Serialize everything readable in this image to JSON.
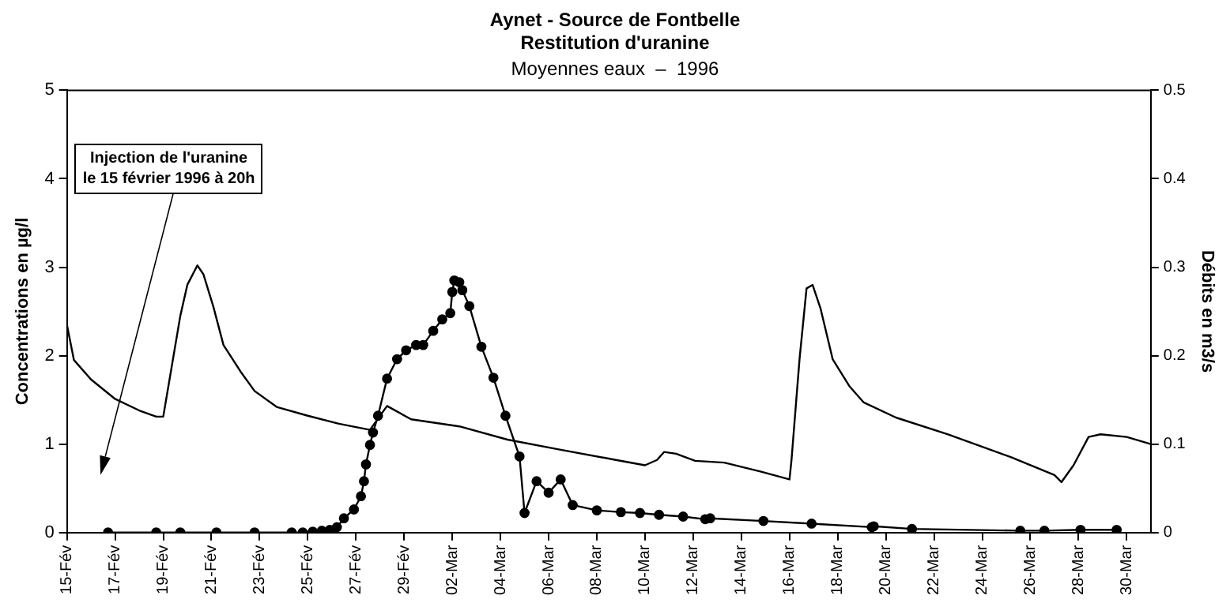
{
  "chart_data": {
    "type": "line",
    "title": "Aynet - Source de Fontbelle\nRestitution d'uranine",
    "subtitle": "Moyennes eaux  –  1996",
    "ylabel": "Concentrations en µg/l",
    "y2label": "Débits en m3/s",
    "annotations": [
      "Injection de l'uranine\nle 15 février 1996 à 20h"
    ],
    "xlim": [
      "1996-02-15",
      "1996-03-31"
    ],
    "xticks": [
      {
        "value": "1996-02-15",
        "label": "15-Fév"
      },
      {
        "value": "1996-02-17",
        "label": "17-Fév"
      },
      {
        "value": "1996-02-19",
        "label": "19-Fév"
      },
      {
        "value": "1996-02-21",
        "label": "21-Fév"
      },
      {
        "value": "1996-02-23",
        "label": "23-Fév"
      },
      {
        "value": "1996-02-25",
        "label": "25-Fév"
      },
      {
        "value": "1996-02-27",
        "label": "27-Fév"
      },
      {
        "value": "1996-02-29",
        "label": "29-Fév"
      },
      {
        "value": "1996-03-02",
        "label": "02-Mar"
      },
      {
        "value": "1996-03-04",
        "label": "04-Mar"
      },
      {
        "value": "1996-03-06",
        "label": "06-Mar"
      },
      {
        "value": "1996-03-08",
        "label": "08-Mar"
      },
      {
        "value": "1996-03-10",
        "label": "10-Mar"
      },
      {
        "value": "1996-03-12",
        "label": "12-Mar"
      },
      {
        "value": "1996-03-14",
        "label": "14-Mar"
      },
      {
        "value": "1996-03-16",
        "label": "16-Mar"
      },
      {
        "value": "1996-03-18",
        "label": "18-Mar"
      },
      {
        "value": "1996-03-20",
        "label": "20-Mar"
      },
      {
        "value": "1996-03-22",
        "label": "22-Mar"
      },
      {
        "value": "1996-03-24",
        "label": "24-Mar"
      },
      {
        "value": "1996-03-26",
        "label": "26-Mar"
      },
      {
        "value": "1996-03-28",
        "label": "28-Mar"
      },
      {
        "value": "1996-03-30",
        "label": "30-Mar"
      }
    ],
    "ylim": [
      0,
      5
    ],
    "yticks": [
      0,
      1,
      2,
      3,
      4,
      5
    ],
    "y2lim": [
      0,
      0.5
    ],
    "y2ticks": [
      0,
      0.1,
      0.2,
      0.3,
      0.4,
      0.5
    ],
    "grid": false,
    "legend": false,
    "series": [
      {
        "axis": "y2",
        "color": "#000000",
        "marker": "none",
        "x": [
          "1996-02-15T00:00",
          "1996-02-15T07:00",
          "1996-02-16T00:00",
          "1996-02-17T00:00",
          "1996-02-18T00:00",
          "1996-02-18T17:00",
          "1996-02-19T00:00",
          "1996-02-19T17:00",
          "1996-02-20T00:00",
          "1996-02-20T10:00",
          "1996-02-20T16:00",
          "1996-02-21T02:00",
          "1996-02-21T12:00",
          "1996-02-22T05:00",
          "1996-02-22T19:00",
          "1996-02-23T17:00",
          "1996-02-25T00:00",
          "1996-02-26T07:00",
          "1996-02-27T14:00",
          "1996-02-28T07:00",
          "1996-02-29T07:00",
          "1996-03-02T07:00",
          "1996-03-04T07:00",
          "1996-03-06T10:00",
          "1996-03-08T19:00",
          "1996-03-10T00:00",
          "1996-03-10T12:00",
          "1996-03-10T19:00",
          "1996-03-11T07:00",
          "1996-03-12T02:00",
          "1996-03-13T07:00",
          "1996-03-14T19:00",
          "1996-03-16T00:00",
          "1996-03-16T02:00",
          "1996-03-16T10:00",
          "1996-03-16T17:00",
          "1996-03-16T23:00",
          "1996-03-17T07:00",
          "1996-03-17T19:00",
          "1996-03-18T12:00",
          "1996-03-19T02:00",
          "1996-03-20T10:00",
          "1996-03-22T14:00",
          "1996-03-25T05:00",
          "1996-03-27T00:00",
          "1996-03-27T07:00",
          "1996-03-27T19:00",
          "1996-03-28T10:00",
          "1996-03-28T22:00",
          "1996-03-30T00:00",
          "1996-03-31T00:00"
        ],
        "values": [
          0.235,
          0.195,
          0.173,
          0.151,
          0.138,
          0.131,
          0.131,
          0.245,
          0.28,
          0.302,
          0.292,
          0.255,
          0.212,
          0.182,
          0.16,
          0.142,
          0.132,
          0.123,
          0.116,
          0.143,
          0.128,
          0.12,
          0.105,
          0.094,
          0.082,
          0.076,
          0.082,
          0.091,
          0.089,
          0.081,
          0.079,
          0.069,
          0.06,
          0.082,
          0.196,
          0.276,
          0.28,
          0.253,
          0.196,
          0.165,
          0.147,
          0.13,
          0.111,
          0.085,
          0.065,
          0.057,
          0.076,
          0.108,
          0.111,
          0.108,
          0.1
        ]
      },
      {
        "color": "#000000",
        "marker": "circle",
        "x": [
          "1996-02-16T17:00",
          "1996-02-18T17:00",
          "1996-02-19T17:00",
          "1996-02-21T05:00",
          "1996-02-22T19:00",
          "1996-02-24T08:00",
          "1996-02-24T19:00",
          "1996-02-25T05:00",
          "1996-02-25T14:00",
          "1996-02-25T22:00",
          "1996-02-26T05:00",
          "1996-02-26T12:00",
          "1996-02-26T22:00",
          "1996-02-27T05:00",
          "1996-02-27T08:00",
          "1996-02-27T10:00",
          "1996-02-27T14:00",
          "1996-02-27T17:00",
          "1996-02-27T22:00",
          "1996-02-28T07:00",
          "1996-02-28T17:00",
          "1996-02-29T02:00",
          "1996-02-29T12:00",
          "1996-02-29T19:00",
          "1996-03-01T05:00",
          "1996-03-01T14:00",
          "1996-03-01T22:00",
          "1996-03-02T00:00",
          "1996-03-02T02:00",
          "1996-03-02T07:00",
          "1996-03-02T10:00",
          "1996-03-02T17:00",
          "1996-03-03T05:00",
          "1996-03-03T17:00",
          "1996-03-04T05:00",
          "1996-03-04T19:00",
          "1996-03-05T00:00",
          "1996-03-05T12:00",
          "1996-03-06T00:00",
          "1996-03-06T12:00",
          "1996-03-07T00:00",
          "1996-03-08T00:00",
          "1996-03-09T00:00",
          "1996-03-09T19:00",
          "1996-03-10T14:00",
          "1996-03-11T14:00",
          "1996-03-12T12:00",
          "1996-03-12T17:00",
          "1996-03-14T22:00",
          "1996-03-16T22:00",
          "1996-03-19T10:00",
          "1996-03-19T12:00",
          "1996-03-21T02:00",
          "1996-03-25T14:00",
          "1996-03-26T14:00",
          "1996-03-28T02:00",
          "1996-03-29T14:00"
        ],
        "values": [
          0,
          0,
          0,
          0,
          0,
          0,
          0,
          0.01,
          0.02,
          0.03,
          0.06,
          0.16,
          0.26,
          0.41,
          0.58,
          0.77,
          0.99,
          1.13,
          1.32,
          1.74,
          1.96,
          2.06,
          2.12,
          2.12,
          2.28,
          2.41,
          2.48,
          2.72,
          2.85,
          2.83,
          2.74,
          2.56,
          2.1,
          1.75,
          1.32,
          0.86,
          0.22,
          0.58,
          0.45,
          0.6,
          0.31,
          0.25,
          0.23,
          0.22,
          0.2,
          0.18,
          0.15,
          0.16,
          0.13,
          0.1,
          0.06,
          0.07,
          0.04,
          0.02,
          0.02,
          0.03,
          0.03
        ]
      }
    ]
  }
}
